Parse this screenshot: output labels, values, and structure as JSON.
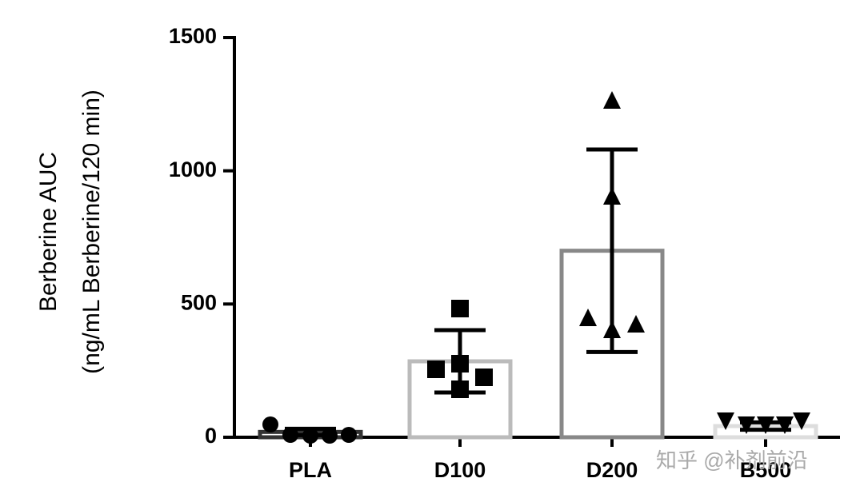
{
  "chart_data": {
    "type": "bar",
    "y_label": [
      "Berberine AUC",
      "(ng/mL  Berberine/120 min)"
    ],
    "categories": [
      "PLA",
      "D100",
      "D200",
      "B500"
    ],
    "values": [
      20,
      285,
      700,
      42
    ],
    "errors": [
      12,
      117,
      380,
      14
    ],
    "points": [
      [
        48,
        9,
        6,
        6,
        9
      ],
      [
        483,
        255,
        276,
        225,
        180
      ],
      [
        1266,
        906,
        450,
        405,
        426
      ],
      [
        60,
        45,
        45,
        45,
        60
      ]
    ],
    "bar_colors": [
      "#333333",
      "#bbbbbb",
      "#888888",
      "#dddddd"
    ],
    "markers": [
      "circle",
      "square",
      "triangle",
      "triangle-down"
    ],
    "ylim": [
      0,
      1500
    ],
    "yticks": [
      0,
      500,
      1000,
      1500
    ],
    "watermark": "知乎 @补剂前沿"
  }
}
